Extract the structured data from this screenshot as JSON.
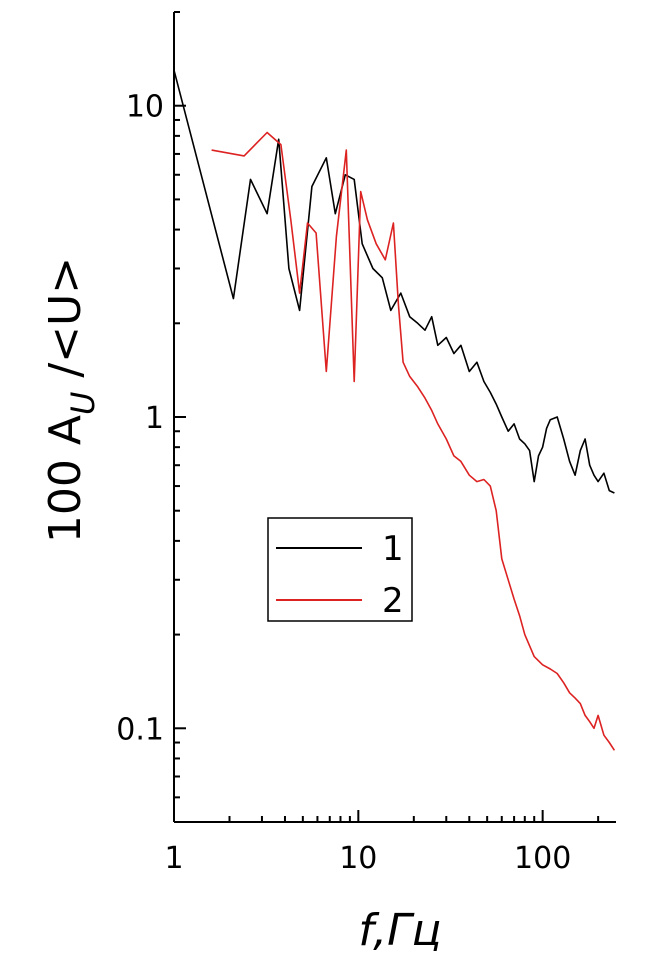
{
  "chart_data": {
    "type": "line",
    "xscale": "log",
    "yscale": "log",
    "xlim": [
      1,
      250
    ],
    "ylim": [
      0.05,
      20
    ],
    "xlabel": "f,Гц",
    "ylabel": "100 A_U /<U>",
    "ylabel_parts": {
      "prefix": "100 A",
      "sub": "U",
      "suffix": " /<U>"
    },
    "xlabel_parts": {
      "f": "f",
      "rest": ",Гц"
    },
    "xticks": [
      {
        "value": 1,
        "label": "1"
      },
      {
        "value": 10,
        "label": "10"
      },
      {
        "value": 100,
        "label": "100"
      }
    ],
    "yticks": [
      {
        "value": 0.1,
        "label": "0.1"
      },
      {
        "value": 1,
        "label": "1"
      },
      {
        "value": 10,
        "label": "10"
      }
    ],
    "grid": false,
    "legend": "center",
    "series": [
      {
        "name": "1",
        "color": "#000000",
        "x": [
          1.0,
          2.1,
          2.6,
          3.2,
          3.7,
          4.2,
          4.8,
          5.6,
          6.7,
          7.5,
          8.5,
          9.5,
          10.5,
          12,
          13.5,
          15,
          17,
          19,
          21,
          23,
          25,
          27,
          30,
          33,
          36,
          40,
          44,
          48,
          52,
          56,
          60,
          65,
          70,
          75,
          80,
          85,
          90,
          95,
          100,
          105,
          110,
          120,
          130,
          140,
          150,
          160,
          170,
          180,
          190,
          200,
          215,
          230,
          245
        ],
        "y": [
          13,
          2.4,
          5.8,
          4.5,
          7.8,
          3.0,
          2.2,
          5.5,
          6.8,
          4.5,
          6.0,
          5.8,
          3.6,
          3.0,
          2.8,
          2.2,
          2.5,
          2.1,
          2.0,
          1.9,
          2.1,
          1.7,
          1.8,
          1.6,
          1.7,
          1.4,
          1.5,
          1.3,
          1.2,
          1.1,
          1.0,
          0.9,
          0.95,
          0.85,
          0.82,
          0.78,
          0.62,
          0.75,
          0.8,
          0.92,
          0.98,
          1.0,
          0.85,
          0.72,
          0.65,
          0.78,
          0.85,
          0.7,
          0.65,
          0.62,
          0.66,
          0.58,
          0.57
        ]
      },
      {
        "name": "2",
        "color": "#dd2222",
        "x": [
          1.6,
          2.4,
          3.2,
          3.8,
          4.3,
          4.8,
          5.3,
          5.9,
          6.7,
          7.6,
          8.6,
          9.5,
          10.3,
          11.2,
          12.5,
          14,
          15.5,
          16.5,
          17.5,
          19,
          21,
          23,
          25,
          27,
          30,
          33,
          36,
          40,
          44,
          48,
          52,
          56,
          60,
          65,
          70,
          75,
          80,
          90,
          100,
          110,
          120,
          130,
          140,
          150,
          160,
          170,
          180,
          190,
          200,
          215,
          230,
          245
        ],
        "y": [
          7.2,
          6.9,
          8.2,
          7.5,
          4.3,
          2.5,
          4.2,
          3.9,
          1.4,
          3.8,
          7.2,
          1.3,
          5.3,
          4.3,
          3.6,
          3.2,
          4.2,
          2.3,
          1.5,
          1.35,
          1.25,
          1.15,
          1.05,
          0.95,
          0.85,
          0.75,
          0.72,
          0.65,
          0.62,
          0.63,
          0.6,
          0.5,
          0.35,
          0.3,
          0.26,
          0.23,
          0.2,
          0.17,
          0.16,
          0.155,
          0.15,
          0.14,
          0.13,
          0.125,
          0.12,
          0.11,
          0.105,
          0.1,
          0.11,
          0.095,
          0.09,
          0.085
        ]
      }
    ]
  }
}
